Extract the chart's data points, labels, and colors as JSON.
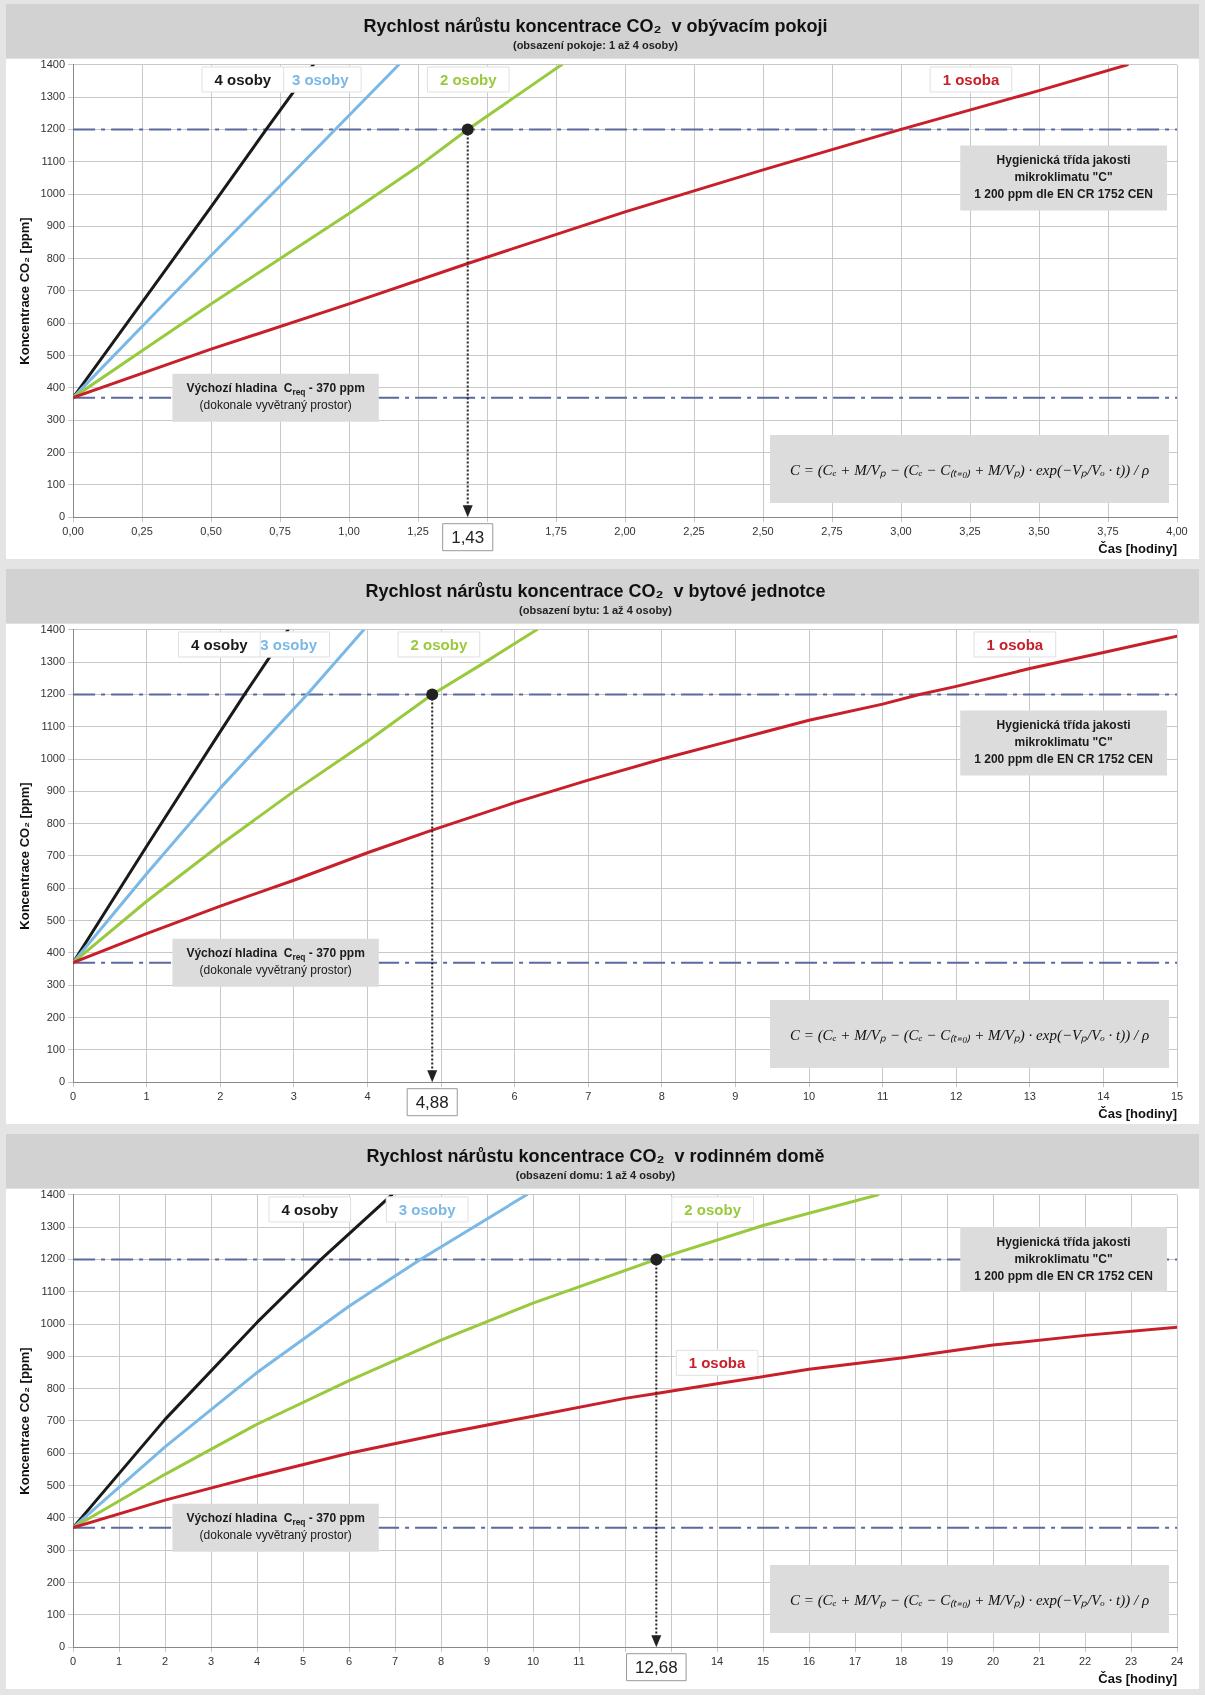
{
  "chart_data": [
    {
      "type": "line",
      "title": "Rychlost nárůstu koncentrace CO₂  v obývacím pokoji",
      "subtitle": "(obsazení pokoje: 1 až 4 osoby)",
      "xlabel": "Čas [hodiny]",
      "ylabel": "Koncentrace CO₂ [ppm]",
      "xlim": [
        0,
        4
      ],
      "xticks": [
        {
          "value": 0,
          "label": "0,00"
        },
        {
          "value": 0.25,
          "label": "0,25"
        },
        {
          "value": 0.5,
          "label": "0,50"
        },
        {
          "value": 0.75,
          "label": "0,75"
        },
        {
          "value": 1,
          "label": "1,00"
        },
        {
          "value": 1.25,
          "label": "1,25"
        },
        {
          "value": 1.5,
          "label": null
        },
        {
          "value": 1.75,
          "label": "1,75"
        },
        {
          "value": 2,
          "label": "2,00"
        },
        {
          "value": 2.25,
          "label": "2,25"
        },
        {
          "value": 2.5,
          "label": "2,50"
        },
        {
          "value": 2.75,
          "label": "2,75"
        },
        {
          "value": 3,
          "label": "3,00"
        },
        {
          "value": 3.25,
          "label": "3,25"
        },
        {
          "value": 3.5,
          "label": "3,50"
        },
        {
          "value": 3.75,
          "label": "3,75"
        },
        {
          "value": 4,
          "label": "4,00"
        }
      ],
      "ylim": [
        0,
        1400
      ],
      "yticks": [
        0,
        100,
        200,
        300,
        400,
        500,
        600,
        700,
        800,
        900,
        1000,
        1100,
        1200,
        1300,
        1400
      ],
      "grid": true,
      "legend": false,
      "marker": "none",
      "line_style": "solid",
      "series": [
        {
          "name": "1 osoba",
          "color": "#c8202a",
          "x": [
            0,
            0.5,
            1,
            1.43,
            2,
            2.5,
            3,
            3.5,
            3.82
          ],
          "values": [
            370,
            520,
            660,
            785,
            945,
            1075,
            1200,
            1320,
            1400
          ]
        },
        {
          "name": "2 osoby",
          "color": "#99c93c",
          "x": [
            0,
            0.25,
            0.5,
            0.75,
            1,
            1.25,
            1.43,
            1.6,
            1.77
          ],
          "values": [
            370,
            515,
            660,
            800,
            940,
            1085,
            1200,
            1300,
            1400
          ]
        },
        {
          "name": "3 osoby",
          "color": "#7ab8e6",
          "x": [
            0,
            0.25,
            0.5,
            0.75,
            0.95,
            1.18
          ],
          "values": [
            370,
            590,
            810,
            1025,
            1200,
            1400
          ]
        },
        {
          "name": "4 osoby",
          "color": "#1a1a1a",
          "x": [
            0,
            0.25,
            0.5,
            0.7,
            0.87
          ],
          "values": [
            370,
            665,
            960,
            1200,
            1400
          ]
        }
      ],
      "ref_lines": [
        {
          "axis": "y",
          "value": 1200,
          "label": "Hygienická třída jakosti\nmikroklimatu \"C\"\n1 200 ppm dle EN CR 1752 CEN",
          "color": "#5a6aa0",
          "line_style": "dashed"
        },
        {
          "axis": "y",
          "value": 370,
          "label": "Výchozí hladina  C$_{req}$ - 370 ppm\n(dokonale vyvětraný prostor)",
          "color": "#5a6aa0",
          "line_style": "dashed"
        }
      ],
      "annotations": [
        "C = (Cₑ + M/Vₚ − (Cₑ − C₍ₜ₌₀₎ + M/Vₚ) · exp(−Vₚ/Vₒ · t)) / ρ",
        {
          "text": "1,43",
          "x": 1.43,
          "y": 1200
        }
      ]
    },
    {
      "type": "line",
      "title": "Rychlost nárůstu koncentrace CO₂  v bytové jednotce",
      "subtitle": "(obsazení bytu: 1 až 4 osoby)",
      "xlabel": "Čas [hodiny]",
      "ylabel": "Koncentrace CO₂ [ppm]",
      "xlim": [
        0,
        15
      ],
      "xticks": [
        0,
        1,
        2,
        3,
        4,
        {
          "value": 5,
          "label": null
        },
        6,
        7,
        8,
        9,
        10,
        11,
        12,
        13,
        14,
        15
      ],
      "ylim": [
        0,
        1400
      ],
      "yticks": [
        0,
        100,
        200,
        300,
        400,
        500,
        600,
        700,
        800,
        900,
        1000,
        1100,
        1200,
        1300,
        1400
      ],
      "grid": true,
      "legend": false,
      "marker": "none",
      "line_style": "solid",
      "series": [
        {
          "name": "1 osoba",
          "color": "#c8202a",
          "x": [
            0,
            1,
            2,
            3,
            4,
            4.88,
            6,
            7,
            8,
            9,
            10,
            11,
            11.5,
            12,
            13,
            14,
            15
          ],
          "values": [
            370,
            460,
            545,
            625,
            710,
            780,
            865,
            935,
            1000,
            1060,
            1120,
            1170,
            1200,
            1225,
            1280,
            1330,
            1380
          ]
        },
        {
          "name": "2 osoby",
          "color": "#99c93c",
          "x": [
            0,
            1,
            2,
            3,
            4,
            4.88,
            5.6,
            6.3
          ],
          "values": [
            370,
            560,
            735,
            900,
            1055,
            1200,
            1300,
            1400
          ]
        },
        {
          "name": "3 osoby",
          "color": "#7ab8e6",
          "x": [
            0,
            1,
            2,
            3.18,
            3.95
          ],
          "values": [
            370,
            645,
            910,
            1200,
            1400
          ]
        },
        {
          "name": "4 osoby",
          "color": "#1a1a1a",
          "x": [
            0,
            1,
            2,
            2.33,
            2.92
          ],
          "values": [
            370,
            730,
            1085,
            1200,
            1400
          ]
        }
      ],
      "ref_lines": [
        {
          "axis": "y",
          "value": 1200,
          "label": "Hygienická třída jakosti\nmikroklimatu \"C\"\n1 200 ppm dle EN CR 1752 CEN",
          "color": "#5a6aa0",
          "line_style": "dashed"
        },
        {
          "axis": "y",
          "value": 370,
          "label": "Výchozí hladina  C$_{req}$ - 370 ppm\n(dokonale vyvětraný prostor)",
          "color": "#5a6aa0",
          "line_style": "dashed"
        }
      ],
      "annotations": [
        "C = (Cₑ + M/Vₚ − (Cₑ − C₍ₜ₌₀₎ + M/Vₚ) · exp(−Vₚ/Vₒ · t)) / ρ",
        {
          "text": "4,88",
          "x": 4.88,
          "y": 1200
        }
      ]
    },
    {
      "type": "line",
      "title": "Rychlost nárůstu koncentrace CO₂  v rodinném domě",
      "subtitle": "(obsazení domu: 1 až 4 osoby)",
      "xlabel": "Čas [hodiny]",
      "ylabel": "Koncentrace CO₂ [ppm]",
      "xlim": [
        0,
        24
      ],
      "xticks": [
        0,
        1,
        2,
        3,
        4,
        5,
        6,
        7,
        8,
        9,
        10,
        11,
        {
          "value": 12,
          "label": null
        },
        {
          "value": 13,
          "label": null
        },
        14,
        15,
        16,
        17,
        18,
        19,
        20,
        21,
        22,
        23,
        24
      ],
      "ylim": [
        0,
        1400
      ],
      "yticks": [
        0,
        100,
        200,
        300,
        400,
        500,
        600,
        700,
        800,
        900,
        1000,
        1100,
        1200,
        1300,
        1400
      ],
      "grid": true,
      "legend": false,
      "marker": "none",
      "line_style": "solid",
      "series": [
        {
          "name": "1 osoba",
          "color": "#c8202a",
          "x": [
            0,
            2,
            4,
            6,
            8,
            10,
            12,
            12.68,
            14,
            16,
            18,
            20,
            22,
            24
          ],
          "values": [
            370,
            455,
            530,
            600,
            660,
            715,
            770,
            785,
            815,
            860,
            895,
            935,
            965,
            990
          ]
        },
        {
          "name": "2 osoby",
          "color": "#99c93c",
          "x": [
            0,
            2,
            4,
            6,
            8,
            10,
            12.68,
            15,
            17.5
          ],
          "values": [
            370,
            535,
            690,
            825,
            950,
            1065,
            1200,
            1305,
            1400
          ]
        },
        {
          "name": "3 osoby",
          "color": "#7ab8e6",
          "x": [
            0,
            2,
            4,
            6,
            7.55,
            9.86
          ],
          "values": [
            370,
            620,
            850,
            1055,
            1200,
            1400
          ]
        },
        {
          "name": "4 osoby",
          "color": "#1a1a1a",
          "x": [
            0,
            2,
            4,
            5.39,
            6.93
          ],
          "values": [
            370,
            705,
            1005,
            1200,
            1400
          ]
        }
      ],
      "ref_lines": [
        {
          "axis": "y",
          "value": 1200,
          "label": "Hygienická třída jakosti\nmikroklimatu \"C\"\n1 200 ppm dle EN CR 1752 CEN",
          "color": "#5a6aa0",
          "line_style": "dashed"
        },
        {
          "axis": "y",
          "value": 370,
          "label": "Výchozí hladina  C$_{req}$ - 370 ppm\n(dokonale vyvětraný prostor)",
          "color": "#5a6aa0",
          "line_style": "dashed"
        }
      ],
      "annotations": [
        "C = (Cₑ + M/Vₚ − (Cₑ − C₍ₜ₌₀₎ + M/Vₚ) · exp(−Vₚ/Vₒ · t)) / ρ",
        {
          "text": "12,68",
          "x": 12.68,
          "y": 1200
        }
      ]
    }
  ]
}
